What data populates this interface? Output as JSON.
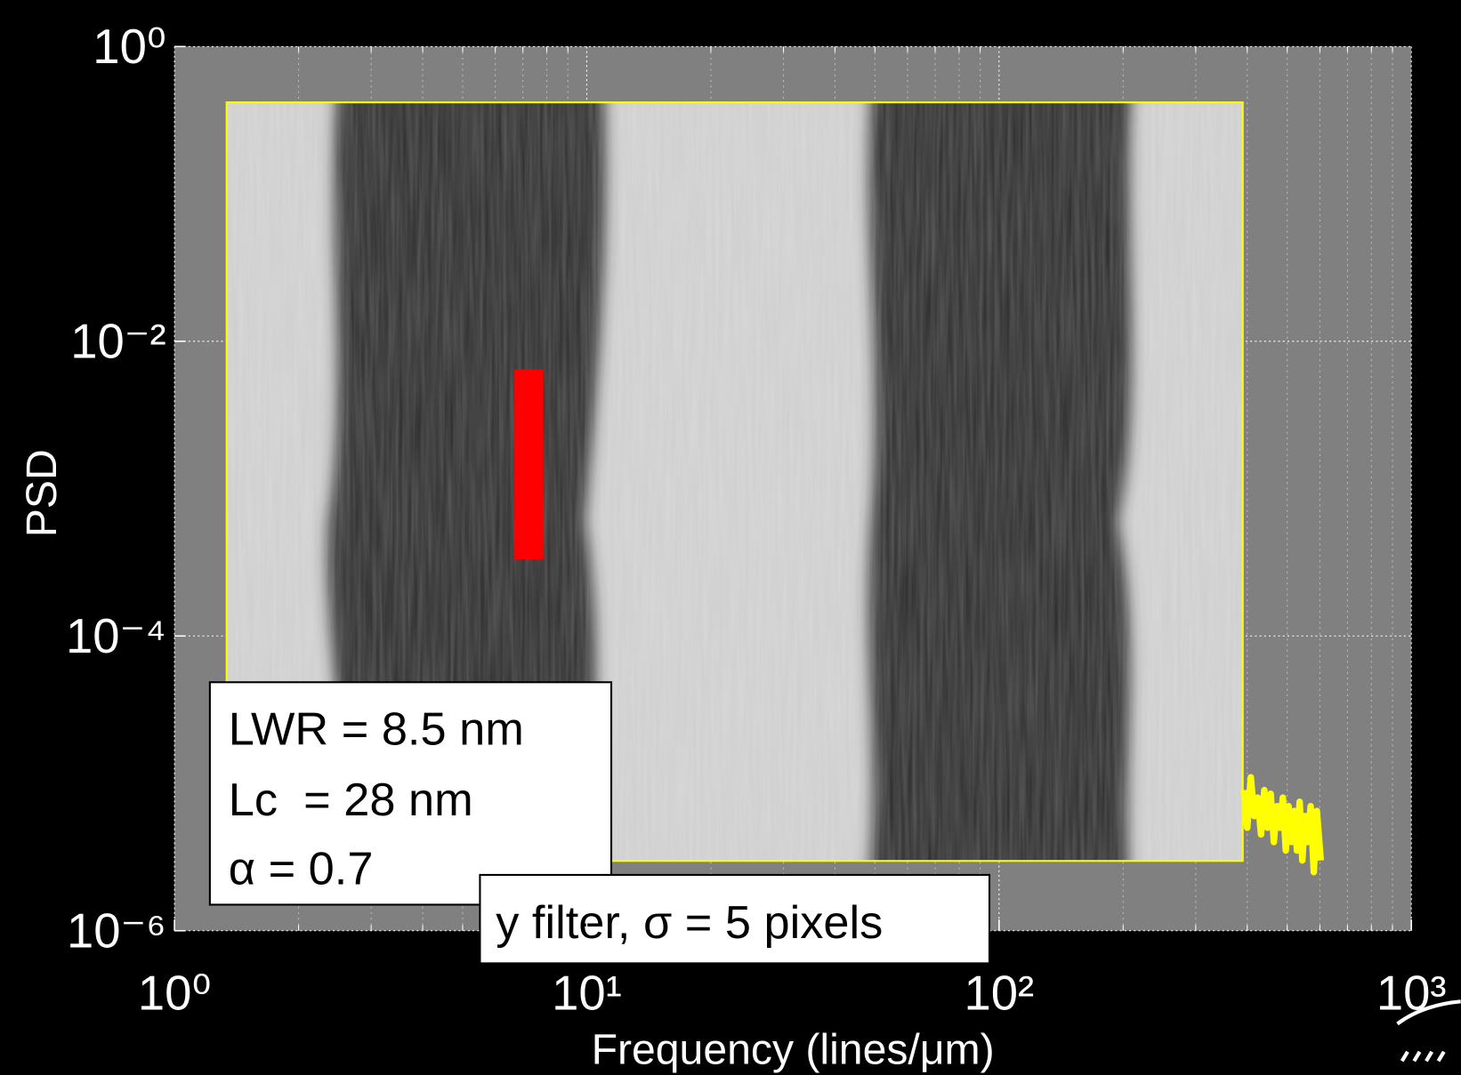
{
  "chart_data": {
    "type": "line",
    "xlabel": "Frequency (lines/μm)",
    "ylabel": "PSD",
    "xscale": "log",
    "yscale": "log",
    "grid": true,
    "xlim": [
      1,
      1000
    ],
    "ylim": [
      1e-06,
      1
    ],
    "xticks": [
      {
        "value": 1,
        "label": "10⁰"
      },
      {
        "value": 10,
        "label": "10¹"
      },
      {
        "value": 100,
        "label": "10²"
      },
      {
        "value": 1000,
        "label": "10³"
      }
    ],
    "yticks": [
      {
        "value": 1e-06,
        "label": "10⁻⁶"
      },
      {
        "value": 0.0001,
        "label": "10⁻⁴"
      },
      {
        "value": 0.01,
        "label": "10⁻²"
      },
      {
        "value": 1,
        "label": "10⁰"
      }
    ],
    "series": [
      {
        "color": "#ffff00",
        "x": [
          392,
          400,
          408,
          416,
          424,
          432,
          440,
          448,
          456,
          464,
          472,
          480,
          488,
          496,
          504,
          512,
          520,
          528,
          536,
          544,
          552,
          560,
          570,
          580,
          590,
          603
        ],
        "values": [
          9e-06,
          5e-06,
          1.1e-05,
          6e-06,
          8e-06,
          4.5e-06,
          9e-06,
          5e-06,
          8.5e-06,
          4e-06,
          7e-06,
          5e-06,
          8e-06,
          3.5e-06,
          7e-06,
          4e-06,
          6.5e-06,
          3.5e-06,
          7.5e-06,
          3e-06,
          6e-06,
          4e-06,
          7e-06,
          2.5e-06,
          6.5e-06,
          3e-06
        ]
      }
    ],
    "annotations": [
      "LWR = 8.5 nm",
      "Lc  = 28 nm",
      "α = 0.7",
      "y filter, σ = 5 pixels"
    ]
  }
}
